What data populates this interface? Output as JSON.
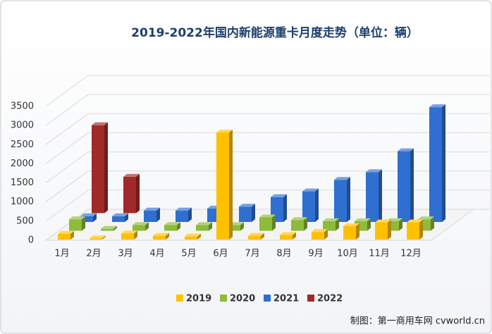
{
  "chart_data": {
    "type": "bar3d",
    "title": "2019-2022年国内新能源重卡月度走势（单位：辆）",
    "categories": [
      "1月",
      "2月",
      "3月",
      "4月",
      "5月",
      "6月",
      "7月",
      "8月",
      "9月",
      "10月",
      "11月",
      "12月"
    ],
    "series": [
      {
        "name": "2019",
        "color": "#ffc000",
        "values": [
          150,
          30,
          160,
          100,
          80,
          2800,
          100,
          120,
          200,
          350,
          450,
          450
        ]
      },
      {
        "name": "2020",
        "color": "#8dbb3a",
        "values": [
          300,
          50,
          150,
          150,
          150,
          150,
          350,
          280,
          250,
          250,
          250,
          300
        ]
      },
      {
        "name": "2021",
        "color": "#2f6fd0",
        "values": [
          150,
          150,
          300,
          300,
          350,
          400,
          650,
          800,
          1100,
          1300,
          1850,
          3000
        ]
      },
      {
        "name": "2022",
        "color": "#a2292a",
        "values": [
          2300,
          950,
          null,
          null,
          null,
          null,
          null,
          null,
          null,
          null,
          null,
          null
        ]
      }
    ],
    "ylim": [
      0,
      3500
    ],
    "yticks": [
      0,
      500,
      1000,
      1500,
      2000,
      2500,
      3000,
      3500
    ],
    "grid": true,
    "source": "制图：第一商用车网 cvworld.cn"
  }
}
